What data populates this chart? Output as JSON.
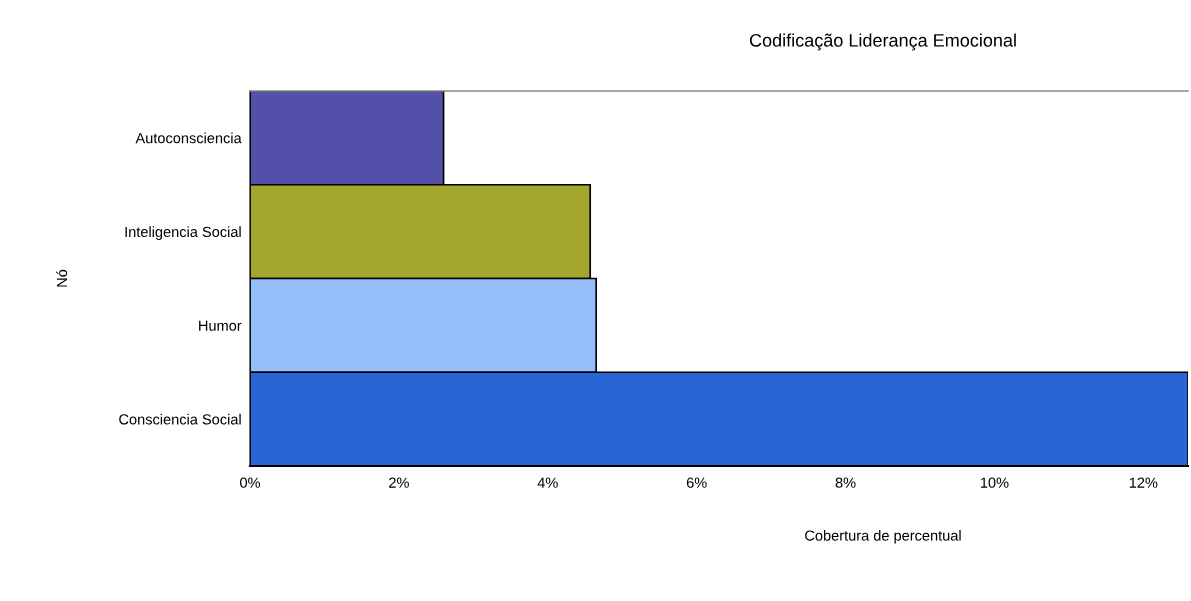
{
  "chart_data": {
    "type": "bar",
    "orientation": "horizontal",
    "title": "Codificação Liderança Emocional",
    "xlabel": "Cobertura de percentual",
    "ylabel": "Nó",
    "categories": [
      "Autoconsciencia",
      "Inteligencia Social",
      "Humor",
      "Consciencia Social"
    ],
    "values": [
      2.6,
      4.57,
      4.65,
      12.6
    ],
    "colors": [
      "#5250a8",
      "#a3a52c",
      "#94bff8",
      "#2866d6"
    ],
    "xlim": [
      0,
      12.6
    ],
    "xticks": [
      {
        "value": 0,
        "label": "0%"
      },
      {
        "value": 2,
        "label": "2%"
      },
      {
        "value": 4,
        "label": "4%"
      },
      {
        "value": 6,
        "label": "6%"
      },
      {
        "value": 8,
        "label": "8%"
      },
      {
        "value": 10,
        "label": "10%"
      },
      {
        "value": 12,
        "label": "12%"
      }
    ]
  }
}
